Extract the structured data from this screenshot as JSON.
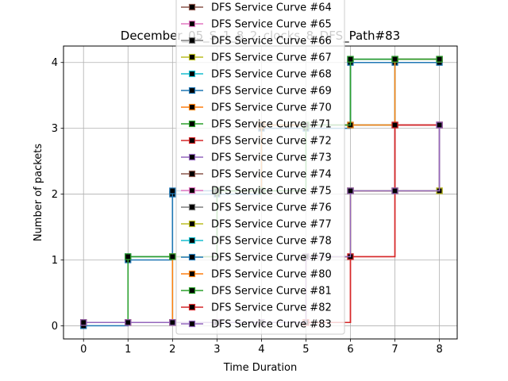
{
  "chart_data": {
    "type": "line",
    "title": "December_05_S_1_8_2_clocks_8_DFS_Path#83",
    "xlabel": "Time Duration",
    "ylabel": "Number of packets",
    "xlim": [
      -0.45,
      8.4
    ],
    "ylim": [
      -0.2,
      4.25
    ],
    "x_ticks": [
      0,
      1,
      2,
      3,
      4,
      5,
      6,
      7,
      8
    ],
    "y_ticks": [
      0,
      1,
      2,
      3,
      4
    ],
    "grid": true,
    "legend_position": "upper center",
    "step_style": "post",
    "series": [
      {
        "name": "DFS Service Curve #64",
        "color": "#8c564b",
        "x": [
          0,
          1,
          2,
          3,
          4,
          5,
          6,
          7,
          8
        ],
        "y": [
          0.05,
          0.05,
          0.05,
          0.05,
          0.05,
          1.05,
          2.05,
          2.05,
          2.05
        ]
      },
      {
        "name": "DFS Service Curve #65",
        "color": "#e377c2",
        "x": [
          0,
          1,
          2,
          3,
          4,
          5,
          6,
          7,
          8
        ],
        "y": [
          0.05,
          0.05,
          0.05,
          0.05,
          0.05,
          1.05,
          2.05,
          3.05,
          3.05
        ]
      },
      {
        "name": "DFS Service Curve #66",
        "color": "#7f7f7f",
        "x": [
          0,
          1,
          2,
          3,
          4,
          5,
          6,
          7,
          8
        ],
        "y": [
          0.05,
          0.05,
          0.05,
          0.05,
          0.05,
          1.05,
          2.05,
          3.05,
          3.05
        ]
      },
      {
        "name": "DFS Service Curve #67",
        "color": "#bcbd22",
        "x": [
          0,
          1,
          2,
          3,
          4,
          5,
          6,
          7,
          8
        ],
        "y": [
          0.05,
          0.05,
          0.05,
          0.05,
          0.05,
          1.05,
          2.05,
          2.05,
          2.05
        ]
      },
      {
        "name": "DFS Service Curve #68",
        "color": "#17becf",
        "x": [
          0,
          1,
          2,
          3,
          4,
          5,
          6,
          7,
          8
        ],
        "y": [
          0.05,
          0.05,
          1.05,
          2.05,
          3.05,
          3.05,
          3.05,
          4.05,
          4.05
        ]
      },
      {
        "name": "DFS Service Curve #69",
        "color": "#1f77b4",
        "x": [
          0,
          1,
          2,
          3,
          4,
          5,
          6,
          7,
          8
        ],
        "y": [
          0,
          1,
          2,
          2,
          3,
          3,
          4,
          4,
          4
        ]
      },
      {
        "name": "DFS Service Curve #70",
        "color": "#ff7f0e",
        "x": [
          0,
          1,
          2,
          3,
          4,
          5,
          6,
          7,
          8
        ],
        "y": [
          0.05,
          0.05,
          1.05,
          2.05,
          3.05,
          3.05,
          3.05,
          4.05,
          4.05
        ]
      },
      {
        "name": "DFS Service Curve #71",
        "color": "#2ca02c",
        "x": [
          0,
          1,
          2,
          3,
          4,
          5,
          6,
          7,
          8
        ],
        "y": [
          0.05,
          1.05,
          1.05,
          2.05,
          2.05,
          3.05,
          4.05,
          4.05,
          4.05
        ]
      },
      {
        "name": "DFS Service Curve #72",
        "color": "#d62728",
        "x": [
          0,
          1,
          2,
          3,
          4,
          5,
          6,
          7,
          8
        ],
        "y": [
          0.05,
          0.05,
          0.05,
          0.05,
          0.05,
          0.05,
          1.05,
          3.05,
          3.05
        ]
      },
      {
        "name": "DFS Service Curve #73",
        "color": "#9467bd",
        "x": [
          0,
          1,
          2,
          3,
          4,
          5,
          6,
          7,
          8
        ],
        "y": [
          0.05,
          0.05,
          0.05,
          0.05,
          0.05,
          1.05,
          2.05,
          2.05,
          3.05
        ]
      },
      {
        "name": "DFS Service Curve #74",
        "color": "#8c564b",
        "x": [
          0,
          1,
          2,
          3,
          4,
          5,
          6,
          7,
          8
        ],
        "y": [
          0.05,
          0.05,
          0.05,
          0.05,
          0.05,
          1.05,
          2.05,
          2.05,
          3.05
        ]
      },
      {
        "name": "DFS Service Curve #75",
        "color": "#e377c2",
        "x": [
          0,
          1,
          2,
          3,
          4,
          5,
          6,
          7,
          8
        ],
        "y": [
          0.05,
          0.05,
          0.05,
          0.05,
          0.05,
          1.05,
          2.05,
          2.05,
          3.05
        ]
      },
      {
        "name": "DFS Service Curve #76",
        "color": "#7f7f7f",
        "x": [
          0,
          1,
          2,
          3,
          4,
          5,
          6,
          7,
          8
        ],
        "y": [
          0.05,
          0.05,
          0.05,
          0.05,
          0.05,
          1.05,
          2.05,
          2.05,
          3.05
        ]
      },
      {
        "name": "DFS Service Curve #77",
        "color": "#bcbd22",
        "x": [
          0,
          1,
          2,
          3,
          4,
          5,
          6,
          7,
          8
        ],
        "y": [
          0.05,
          0.05,
          0.05,
          0.05,
          0.05,
          1.05,
          2.05,
          2.05,
          2.05
        ]
      },
      {
        "name": "DFS Service Curve #78",
        "color": "#17becf",
        "x": [
          0,
          1,
          2,
          3,
          4,
          5,
          6,
          7,
          8
        ],
        "y": [
          0.05,
          0.05,
          1.05,
          2.05,
          3.05,
          3.05,
          3.05,
          4.05,
          4.05
        ]
      },
      {
        "name": "DFS Service Curve #79",
        "color": "#1f77b4",
        "x": [
          0,
          1,
          2,
          3,
          4,
          5,
          6,
          7,
          8
        ],
        "y": [
          0.05,
          1.05,
          2.05,
          2.05,
          3.05,
          3.05,
          4.05,
          4.05,
          4.05
        ]
      },
      {
        "name": "DFS Service Curve #80",
        "color": "#ff7f0e",
        "x": [
          0,
          1,
          2,
          3,
          4,
          5,
          6,
          7,
          8
        ],
        "y": [
          0.05,
          0.05,
          1.05,
          2.05,
          3.05,
          3.05,
          3.05,
          4.05,
          4.05
        ]
      },
      {
        "name": "DFS Service Curve #81",
        "color": "#2ca02c",
        "x": [
          0,
          1,
          2,
          3,
          4,
          5,
          6,
          7,
          8
        ],
        "y": [
          0.05,
          1.05,
          1.05,
          2.05,
          2.05,
          3.05,
          4.05,
          4.05,
          4.05
        ]
      },
      {
        "name": "DFS Service Curve #82",
        "color": "#d62728",
        "x": [
          0,
          1,
          2,
          3,
          4,
          5,
          6,
          7,
          8
        ],
        "y": [
          0.05,
          0.05,
          0.05,
          0.05,
          0.05,
          0.05,
          1.05,
          3.05,
          3.05
        ]
      },
      {
        "name": "DFS Service Curve #83",
        "color": "#9467bd",
        "x": [
          0,
          1,
          2,
          3,
          4,
          5,
          6,
          7,
          8
        ],
        "y": [
          0.05,
          0.05,
          0.05,
          0.05,
          0.05,
          1.05,
          2.05,
          2.05,
          3.05
        ]
      }
    ]
  }
}
